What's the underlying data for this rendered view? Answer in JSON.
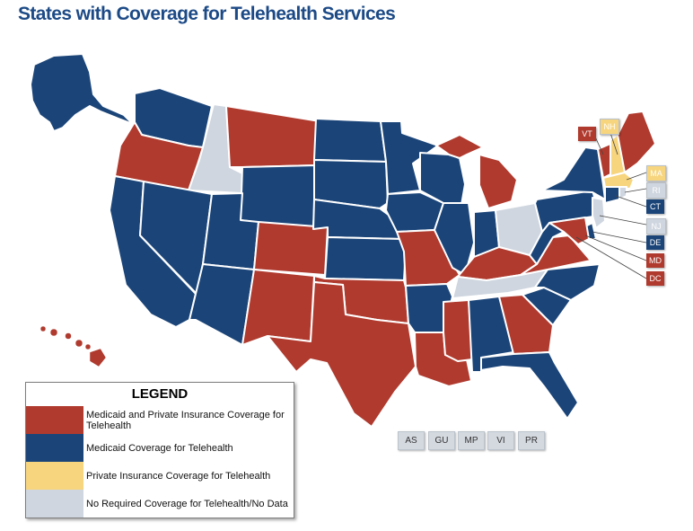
{
  "title": "States with Coverage for Telehealth Services",
  "colors": {
    "both": "#b03a2e",
    "medicaid": "#1b4579",
    "private": "#f7d57e",
    "none": "#cfd6df"
  },
  "legend": {
    "title": "LEGEND",
    "items": [
      {
        "label": "Medicaid and Private Insurance Coverage for Telehealth",
        "category": "both"
      },
      {
        "label": "Medicaid  Coverage for Telehealth",
        "category": "medicaid"
      },
      {
        "label": "Private Insurance Coverage for  Telehealth",
        "category": "private"
      },
      {
        "label": "No Required Coverage for Telehealth/No Data",
        "category": "none"
      }
    ]
  },
  "callouts": [
    {
      "code": "VT",
      "category": "both"
    },
    {
      "code": "NH",
      "category": "private"
    },
    {
      "code": "MA",
      "category": "private"
    },
    {
      "code": "RI",
      "category": "none"
    },
    {
      "code": "CT",
      "category": "medicaid"
    },
    {
      "code": "NJ",
      "category": "none"
    },
    {
      "code": "DE",
      "category": "medicaid"
    },
    {
      "code": "MD",
      "category": "both"
    },
    {
      "code": "DC",
      "category": "both"
    }
  ],
  "territories": [
    "AS",
    "GU",
    "MP",
    "VI",
    "PR"
  ],
  "states": {
    "AK": "medicaid",
    "HI": "both",
    "WA": "medicaid",
    "OR": "both",
    "CA": "medicaid",
    "ID": "none",
    "NV": "medicaid",
    "MT": "both",
    "WY": "medicaid",
    "UT": "medicaid",
    "AZ": "medicaid",
    "CO": "both",
    "NM": "both",
    "ND": "medicaid",
    "SD": "medicaid",
    "NE": "medicaid",
    "KS": "medicaid",
    "OK": "both",
    "TX": "both",
    "MN": "medicaid",
    "IA": "medicaid",
    "MO": "both",
    "AR": "medicaid",
    "LA": "both",
    "WI": "medicaid",
    "IL": "medicaid",
    "MI": "both",
    "IN": "medicaid",
    "OH": "none",
    "KY": "both",
    "TN": "none",
    "MS": "both",
    "AL": "medicaid",
    "GA": "both",
    "FL": "medicaid",
    "SC": "medicaid",
    "NC": "medicaid",
    "VA": "both",
    "WV": "medicaid",
    "PA": "medicaid",
    "NY": "medicaid",
    "VT": "both",
    "NH": "private",
    "ME": "both",
    "MA": "private",
    "RI": "none",
    "CT": "medicaid",
    "NJ": "none",
    "DE": "medicaid",
    "MD": "both"
  }
}
